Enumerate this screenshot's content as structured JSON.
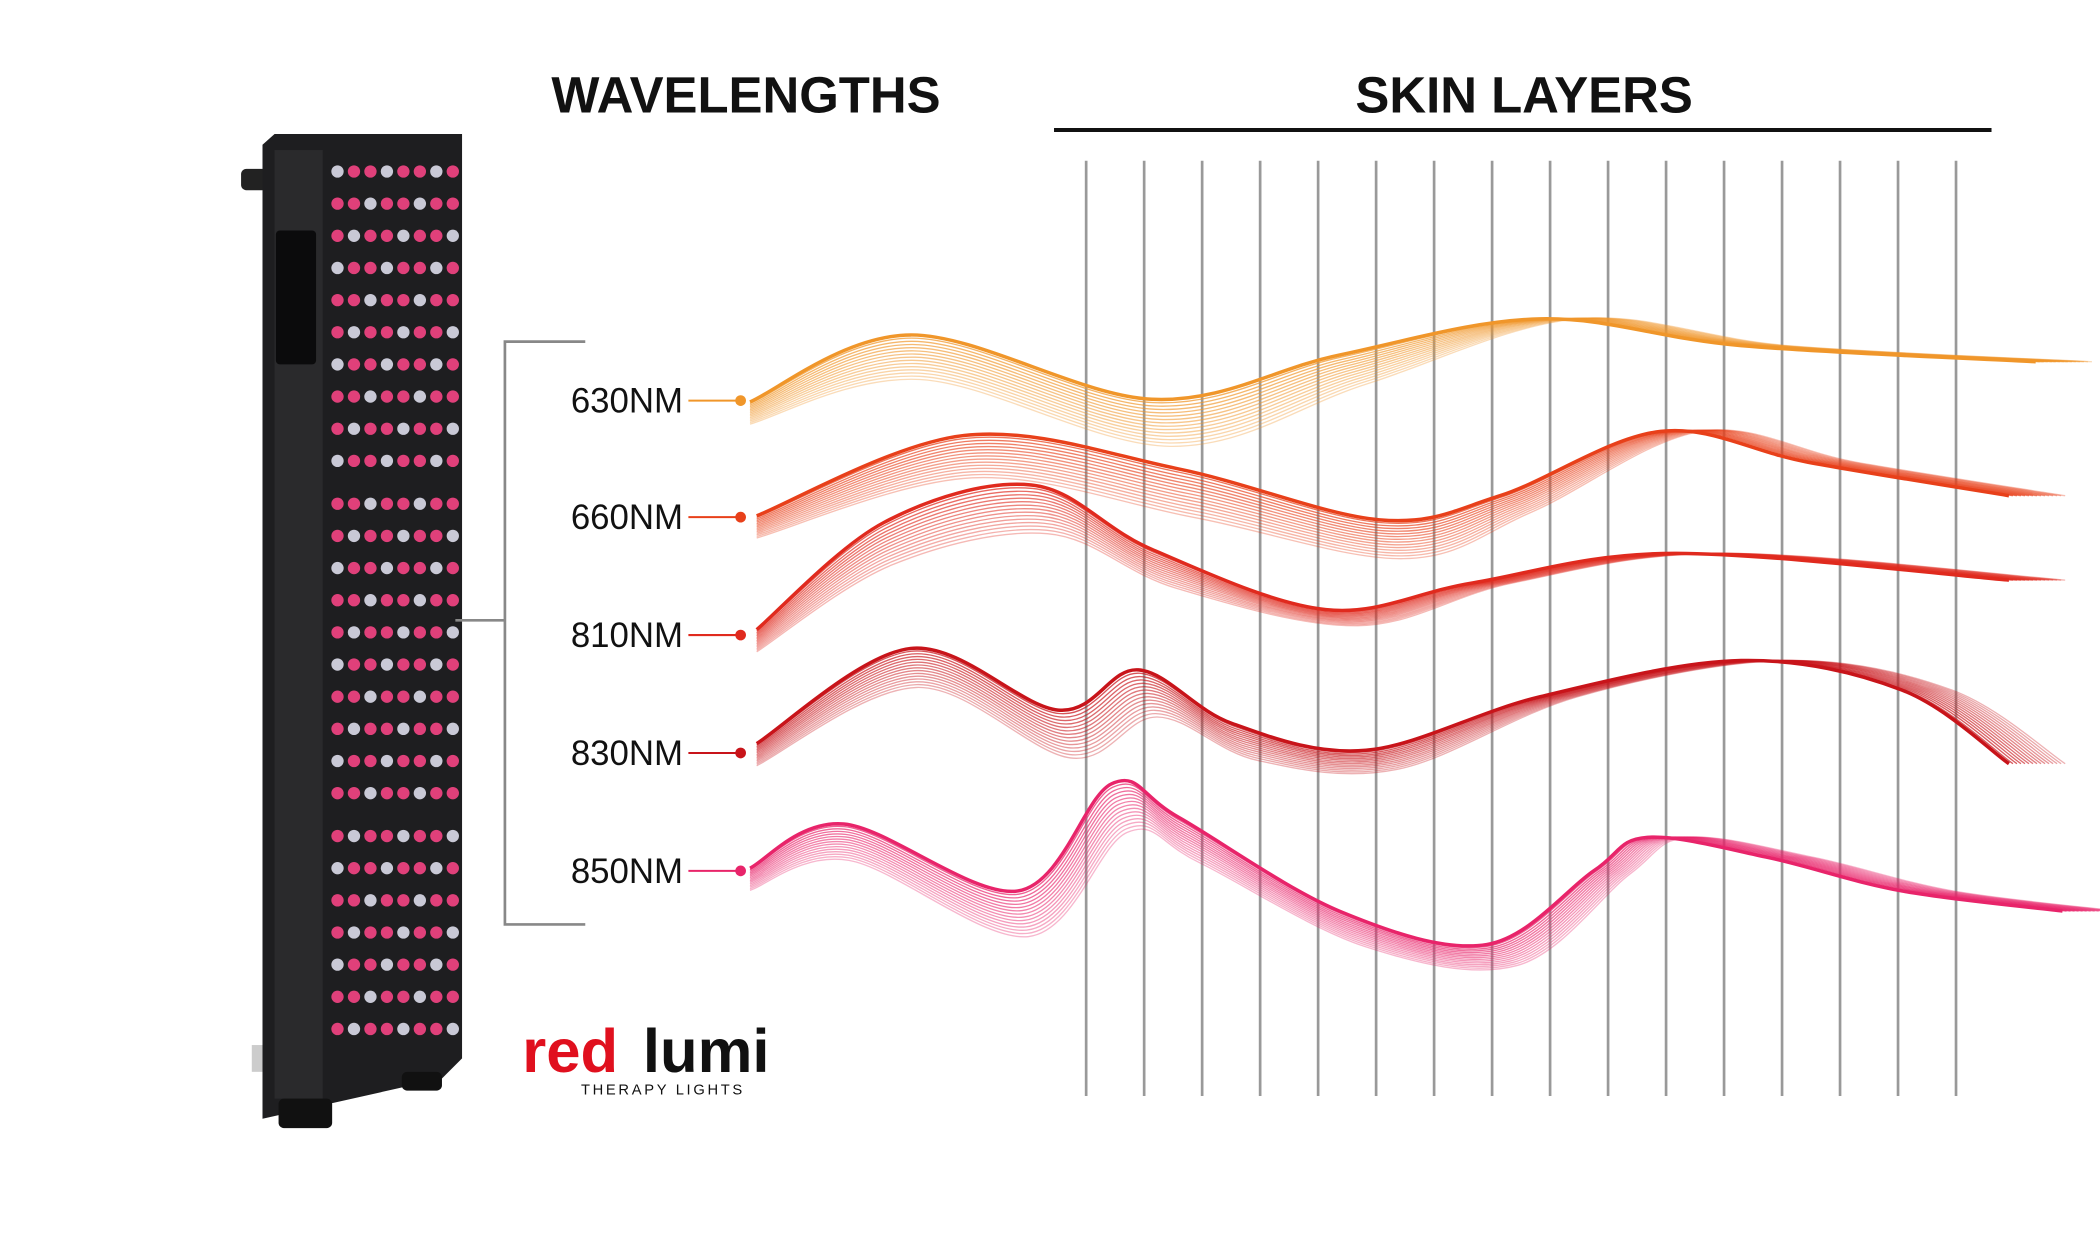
{
  "headings": {
    "wavelengths": "WAVELENGTHS",
    "skin_layers": "SKIN LAYERS"
  },
  "wavelengths": [
    {
      "label": "630NM",
      "color": "#f0962a"
    },
    {
      "label": "660NM",
      "color": "#e8401a"
    },
    {
      "label": "810NM",
      "color": "#e02a1e"
    },
    {
      "label": "830NM",
      "color": "#c8141a"
    },
    {
      "label": "850NM",
      "color": "#e8246a"
    }
  ],
  "logo": {
    "brand_left": "red",
    "brand_right": "lumi",
    "tagline": "THERAPY LIGHTS"
  }
}
